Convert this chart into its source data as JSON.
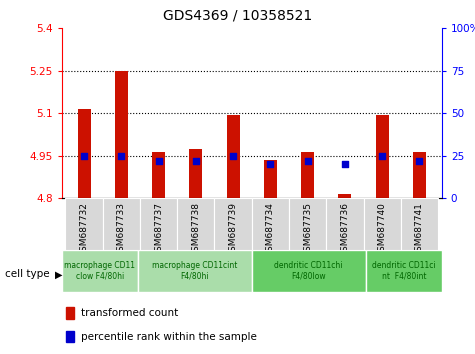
{
  "title": "GDS4369 / 10358521",
  "samples": [
    "GSM687732",
    "GSM687733",
    "GSM687737",
    "GSM687738",
    "GSM687739",
    "GSM687734",
    "GSM687735",
    "GSM687736",
    "GSM687740",
    "GSM687741"
  ],
  "red_values": [
    5.115,
    5.25,
    4.965,
    4.975,
    5.095,
    4.935,
    4.965,
    4.815,
    5.095,
    4.965
  ],
  "blue_values": [
    25,
    25,
    22,
    22,
    25,
    20,
    22,
    20,
    25,
    22
  ],
  "ylim_left": [
    4.8,
    5.4
  ],
  "ylim_right": [
    0,
    100
  ],
  "yticks_left": [
    4.8,
    4.95,
    5.1,
    5.25,
    5.4
  ],
  "yticks_right": [
    0,
    25,
    50,
    75,
    100
  ],
  "ytick_labels_left": [
    "4.8",
    "4.95",
    "5.1",
    "5.25",
    "5.4"
  ],
  "ytick_labels_right": [
    "0",
    "25",
    "50",
    "75",
    "100%"
  ],
  "hlines": [
    4.95,
    5.1,
    5.25
  ],
  "cell_type_groups": [
    {
      "label": "macrophage CD11\nclow F4/80hi",
      "start": 0,
      "end": 2,
      "color": "#aaddaa"
    },
    {
      "label": "macrophage CD11cint\nF4/80hi",
      "start": 2,
      "end": 5,
      "color": "#aaddaa"
    },
    {
      "label": "dendritic CD11chi\nF4/80low",
      "start": 5,
      "end": 8,
      "color": "#66cc66"
    },
    {
      "label": "dendritic CD11ci\nnt  F4/80int",
      "start": 8,
      "end": 10,
      "color": "#66cc66"
    }
  ],
  "legend_red": "transformed count",
  "legend_blue": "percentile rank within the sample",
  "bar_color": "#cc1100",
  "dot_color": "#0000cc",
  "bar_width": 0.35,
  "dot_size": 25,
  "xticklabel_bg": "#d8d8d8"
}
